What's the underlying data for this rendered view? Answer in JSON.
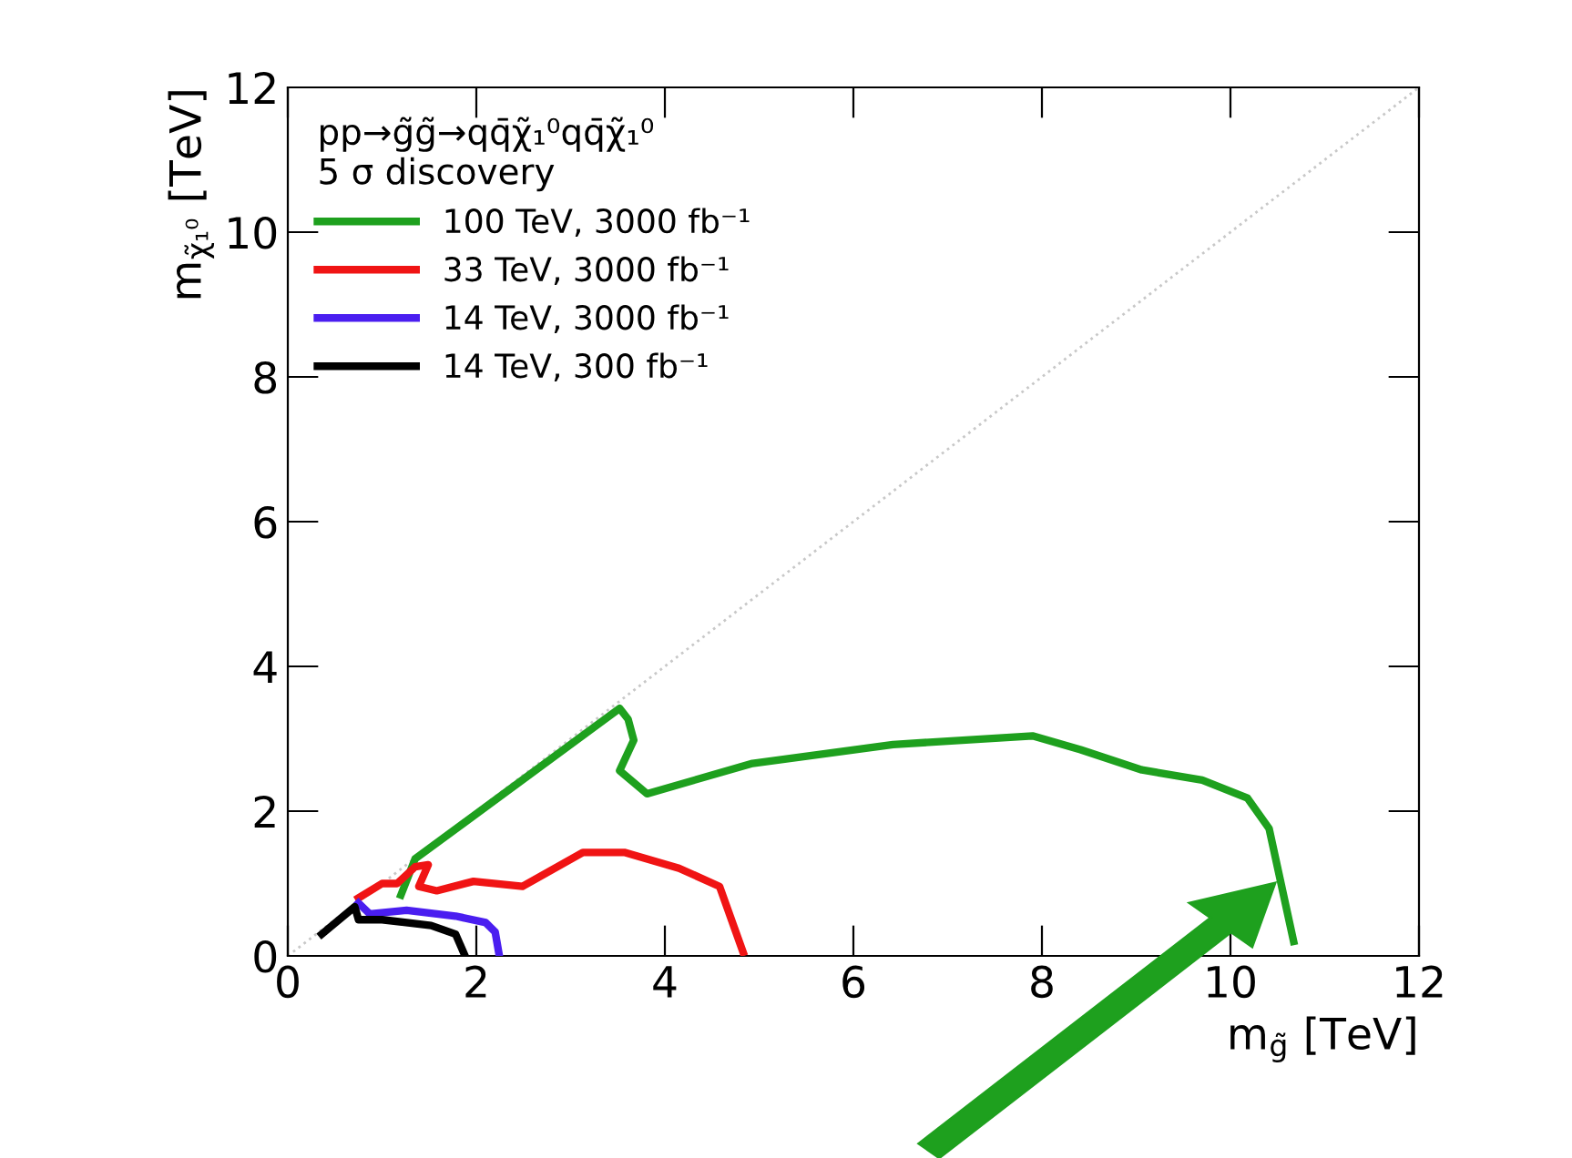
{
  "chart_data": {
    "type": "line",
    "xlabel": "m$_{g̃}$ [TeV]",
    "ylabel": "m$_{χ̃₁⁰}$ [TeV]",
    "legend_title": "pp→g̃g̃→qq̄χ̃₁⁰qq̄χ̃₁⁰\n5 σ discovery",
    "xlim": [
      0,
      12
    ],
    "ylim": [
      0,
      12
    ],
    "xticks": [
      0,
      2,
      4,
      6,
      8,
      10,
      12
    ],
    "yticks": [
      0,
      2,
      4,
      6,
      8,
      10,
      12
    ],
    "grid": false,
    "legend": "top left",
    "line_style": "solid",
    "marker": "none",
    "series": [
      {
        "name": "100 TeV, 3000 fb⁻¹",
        "color": "#1ea01e",
        "x": [
          1.2,
          1.35,
          3.52,
          3.61,
          3.67,
          3.52,
          3.81,
          4.93,
          6.42,
          7.9,
          8.41,
          9.06,
          9.7,
          10.18,
          10.41,
          10.67
        ],
        "values": [
          0.84,
          1.34,
          3.42,
          3.27,
          2.98,
          2.56,
          2.24,
          2.66,
          2.92,
          3.04,
          2.85,
          2.57,
          2.43,
          2.18,
          1.76,
          0.2
        ]
      },
      {
        "name": "33 TeV, 3000 fb⁻¹",
        "color": "#f01414",
        "x": [
          0.75,
          1.0,
          1.16,
          1.35,
          1.49,
          1.39,
          1.58,
          1.97,
          2.49,
          3.13,
          3.57,
          4.15,
          4.58,
          4.83
        ],
        "values": [
          0.8,
          1.0,
          1.0,
          1.23,
          1.26,
          0.96,
          0.9,
          1.03,
          0.96,
          1.43,
          1.43,
          1.21,
          0.96,
          0.05
        ]
      },
      {
        "name": "14 TeV, 3000 fb⁻¹",
        "color": "#4a1ef0",
        "x": [
          0.75,
          0.87,
          1.26,
          1.78,
          2.1,
          2.2,
          2.24
        ],
        "values": [
          0.73,
          0.58,
          0.63,
          0.55,
          0.46,
          0.33,
          0.03
        ]
      },
      {
        "name": "14 TeV, 300 fb⁻¹",
        "color": "#000000",
        "x": [
          0.36,
          0.71,
          0.75,
          1.0,
          1.52,
          1.78,
          1.87
        ],
        "values": [
          0.3,
          0.68,
          0.5,
          0.5,
          0.42,
          0.3,
          0.03
        ]
      },
      {
        "color": "#c8c8c8",
        "line_style": "dotted",
        "x": [
          0,
          12
        ],
        "values": [
          0,
          12
        ]
      }
    ]
  }
}
